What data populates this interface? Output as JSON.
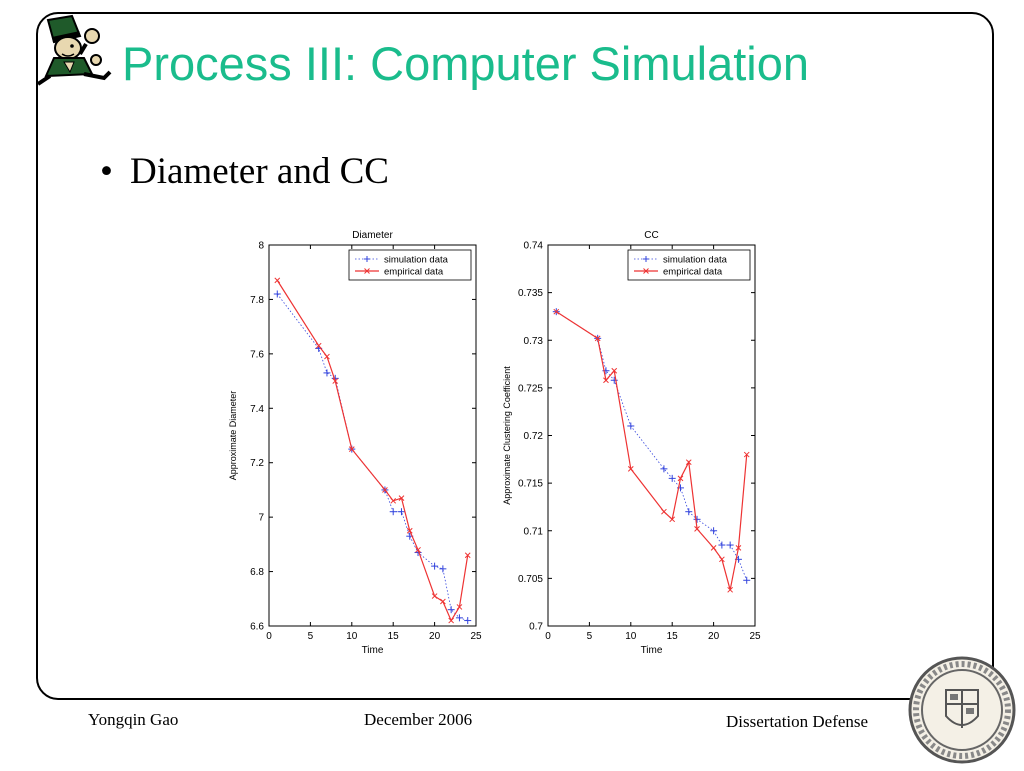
{
  "slide": {
    "title": "Process III: Computer Simulation",
    "bullet": "Diameter and CC",
    "footer_left": "Yongqin Gao",
    "footer_center": "December 2006",
    "footer_right": "Dissertation Defense"
  },
  "colors": {
    "title": "#1abc8c",
    "simulation": "#3344dd",
    "empirical": "#ee3333"
  },
  "icons": {
    "top_left": "leprechaun-mascot-icon",
    "bottom_right": "university-seal-icon"
  },
  "chart_data": [
    {
      "type": "line",
      "title": "Diameter",
      "xlabel": "Time",
      "ylabel": "Approximate Diameter",
      "xlim": [
        0,
        25
      ],
      "ylim": [
        6.6,
        8
      ],
      "xticks": [
        0,
        5,
        10,
        15,
        20,
        25
      ],
      "yticks": [
        6.6,
        6.8,
        7,
        7.2,
        7.4,
        7.6,
        7.8,
        8
      ],
      "legend": "top-right",
      "series": [
        {
          "name": "simulation data",
          "marker": "+",
          "line": "dotted",
          "x": [
            1,
            6,
            7,
            8,
            10,
            14,
            15,
            16,
            17,
            18,
            20,
            21,
            22,
            23,
            24
          ],
          "y": [
            7.82,
            7.62,
            7.53,
            7.51,
            7.25,
            7.1,
            7.02,
            7.02,
            6.93,
            6.87,
            6.82,
            6.81,
            6.66,
            6.63,
            6.62
          ]
        },
        {
          "name": "empirical data",
          "marker": "x",
          "line": "solid",
          "x": [
            1,
            6,
            7,
            8,
            10,
            14,
            15,
            16,
            17,
            18,
            20,
            21,
            22,
            23,
            24
          ],
          "y": [
            7.87,
            7.63,
            7.59,
            7.5,
            7.25,
            7.1,
            7.06,
            7.07,
            6.95,
            6.88,
            6.71,
            6.69,
            6.62,
            6.67,
            6.86
          ]
        }
      ]
    },
    {
      "type": "line",
      "title": "CC",
      "xlabel": "Time",
      "ylabel": "Approximate Clustering Coefficient",
      "xlim": [
        0,
        25
      ],
      "ylim": [
        0.7,
        0.74
      ],
      "xticks": [
        0,
        5,
        10,
        15,
        20,
        25
      ],
      "yticks": [
        0.7,
        0.705,
        0.71,
        0.715,
        0.72,
        0.725,
        0.73,
        0.735,
        0.74
      ],
      "legend": "top-right",
      "series": [
        {
          "name": "simulation data",
          "marker": "+",
          "line": "dotted",
          "x": [
            1,
            6,
            7,
            8,
            10,
            14,
            15,
            16,
            17,
            18,
            20,
            21,
            22,
            23,
            24
          ],
          "y": [
            0.733,
            0.7302,
            0.7268,
            0.7258,
            0.721,
            0.7165,
            0.7155,
            0.7145,
            0.712,
            0.7112,
            0.71,
            0.7085,
            0.7085,
            0.707,
            0.7048
          ]
        },
        {
          "name": "empirical data",
          "marker": "x",
          "line": "solid",
          "x": [
            1,
            6,
            7,
            8,
            10,
            14,
            15,
            16,
            17,
            18,
            20,
            21,
            22,
            23,
            24
          ],
          "y": [
            0.733,
            0.7302,
            0.7258,
            0.7268,
            0.7165,
            0.712,
            0.7112,
            0.7155,
            0.7172,
            0.7102,
            0.7082,
            0.707,
            0.7038,
            0.7082,
            0.718
          ]
        }
      ]
    }
  ]
}
